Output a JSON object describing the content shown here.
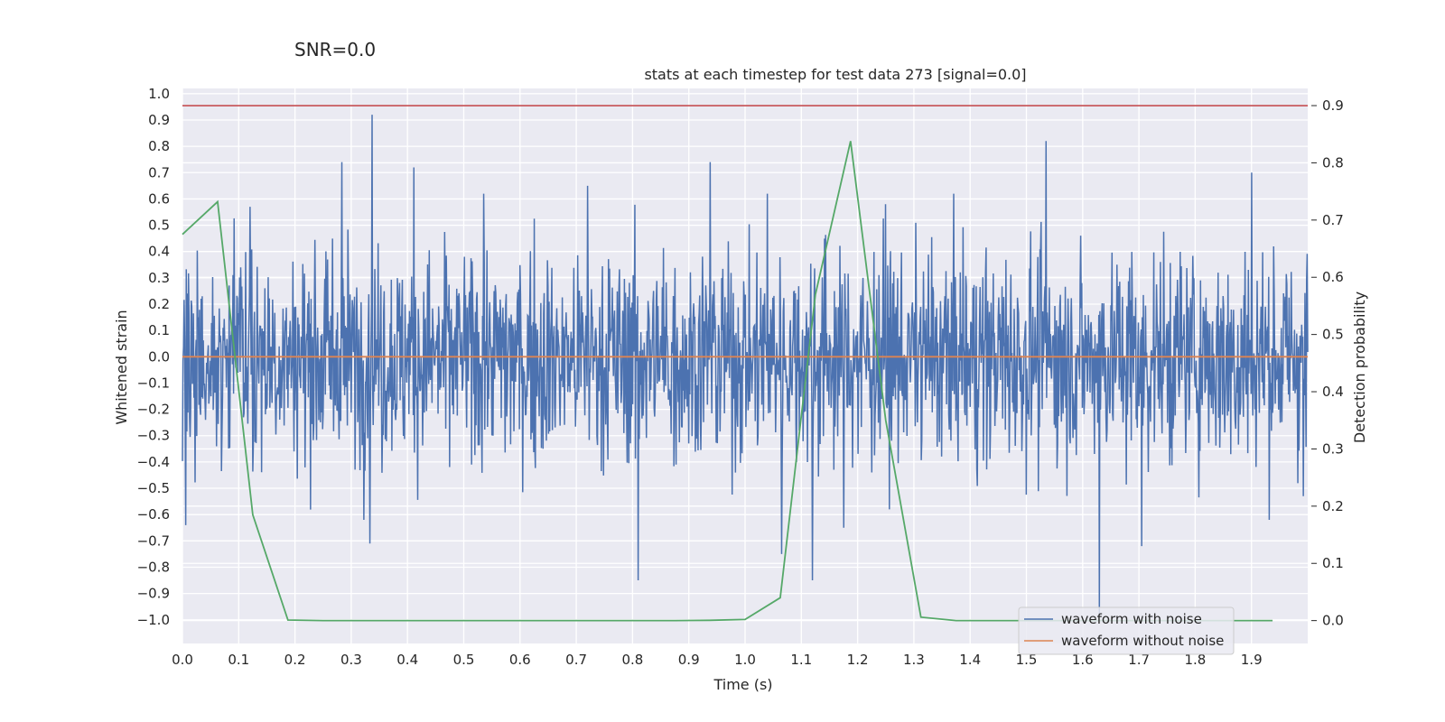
{
  "suptitle": "SNR=0.0",
  "chart_data": {
    "type": "line",
    "title": "stats at each timestep for test data 273 [signal=0.0]",
    "xlabel": "Time (s)",
    "ylabel": "Whitened strain",
    "y2label": "Detection probability",
    "xlim": [
      0.0,
      2.0
    ],
    "ylim": [
      -1.09,
      1.02
    ],
    "y2lim": [
      -0.04,
      0.93
    ],
    "x_ticks": [
      0.0,
      0.1,
      0.2,
      0.3,
      0.4,
      0.5,
      0.6,
      0.7,
      0.8,
      0.9,
      1.0,
      1.1,
      1.2,
      1.3,
      1.4,
      1.5,
      1.6,
      1.7,
      1.8,
      1.9
    ],
    "x_tick_labels": [
      "0.0",
      "0.1",
      "0.2",
      "0.3",
      "0.4",
      "0.5",
      "0.6",
      "0.7",
      "0.8",
      "0.9",
      "1.0",
      "1.1",
      "1.2",
      "1.3",
      "1.4",
      "1.5",
      "1.6",
      "1.7",
      "1.8",
      "1.9"
    ],
    "y_ticks": [
      1.0,
      0.9,
      0.8,
      0.7,
      0.6,
      0.5,
      0.4,
      0.3,
      0.2,
      0.1,
      0.0,
      -0.1,
      -0.2,
      -0.3,
      -0.4,
      -0.5,
      -0.6,
      -0.7,
      -0.8,
      -0.9,
      -1.0
    ],
    "y_tick_labels": [
      "1.0",
      "0.9",
      "0.8",
      "0.7",
      "0.6",
      "0.5",
      "0.4",
      "0.3",
      "0.2",
      "0.1",
      "0.0",
      "−0.1",
      "−0.2",
      "−0.3",
      "−0.4",
      "−0.5",
      "−0.6",
      "−0.7",
      "−0.8",
      "−0.9",
      "−1.0"
    ],
    "y2_ticks": [
      0.9,
      0.8,
      0.7,
      0.6,
      0.5,
      0.4,
      0.3,
      0.2,
      0.1,
      0.0
    ],
    "y2_tick_labels": [
      "0.9",
      "0.8",
      "0.7",
      "0.6",
      "0.5",
      "0.4",
      "0.3",
      "0.2",
      "0.1",
      "0.0"
    ],
    "grid": true,
    "legend_position": "bottom-right",
    "series": [
      {
        "name": "waveform with noise",
        "axis": "left",
        "color": "#4c72b0",
        "sample_count": 2048,
        "x_range": [
          0.0,
          2.0
        ],
        "rms": 0.2,
        "peaks": [
          {
            "x": 0.337,
            "y": 0.92
          },
          {
            "x": 0.333,
            "y": -0.71
          },
          {
            "x": 0.283,
            "y": 0.74
          },
          {
            "x": 0.411,
            "y": 0.72
          },
          {
            "x": 0.006,
            "y": -0.64
          },
          {
            "x": 0.81,
            "y": -0.85
          },
          {
            "x": 0.938,
            "y": 0.74
          },
          {
            "x": 1.04,
            "y": 0.62
          },
          {
            "x": 1.065,
            "y": -0.75
          },
          {
            "x": 1.12,
            "y": -0.85
          },
          {
            "x": 1.175,
            "y": -0.65
          },
          {
            "x": 1.535,
            "y": 0.82
          },
          {
            "x": 1.63,
            "y": -0.98
          },
          {
            "x": 1.705,
            "y": -0.72
          },
          {
            "x": 1.9,
            "y": 0.7
          },
          {
            "x": 1.992,
            "y": -0.53
          },
          {
            "x": 0.12,
            "y": 0.57
          },
          {
            "x": 0.535,
            "y": 0.62
          },
          {
            "x": 0.72,
            "y": 0.65
          },
          {
            "x": 1.25,
            "y": 0.58
          }
        ]
      },
      {
        "name": "waveform without noise",
        "axis": "left",
        "color": "#dd8452",
        "x": [
          0.0,
          2.0
        ],
        "y": [
          0.0,
          0.0
        ]
      },
      {
        "axis": "right",
        "color": "#55a868",
        "x": [
          0.0,
          0.0625,
          0.125,
          0.1875,
          0.25,
          0.3125,
          0.375,
          0.4375,
          0.5,
          0.5625,
          0.625,
          0.6875,
          0.75,
          0.8125,
          0.875,
          0.9375,
          1.0,
          1.0625,
          1.125,
          1.1875,
          1.25,
          1.3125,
          1.375,
          1.4375,
          1.5,
          1.5625,
          1.625,
          1.6875,
          1.75,
          1.8125,
          1.875,
          1.9375
        ],
        "y": [
          0.675,
          0.732,
          0.185,
          0.001,
          0.0,
          0.0,
          0.0,
          0.0,
          0.0,
          0.0,
          0.0,
          0.0,
          0.0,
          0.0,
          0.0,
          0.0005,
          0.002,
          0.04,
          0.57,
          0.838,
          0.35,
          0.006,
          0.0,
          0.0,
          0.0,
          0.0,
          0.0,
          0.0,
          0.0,
          0.0,
          0.0,
          0.0
        ]
      },
      {
        "axis": "right",
        "color": "#c44e52",
        "x": [
          0.0,
          2.0
        ],
        "y": [
          0.9,
          0.9
        ]
      }
    ]
  }
}
